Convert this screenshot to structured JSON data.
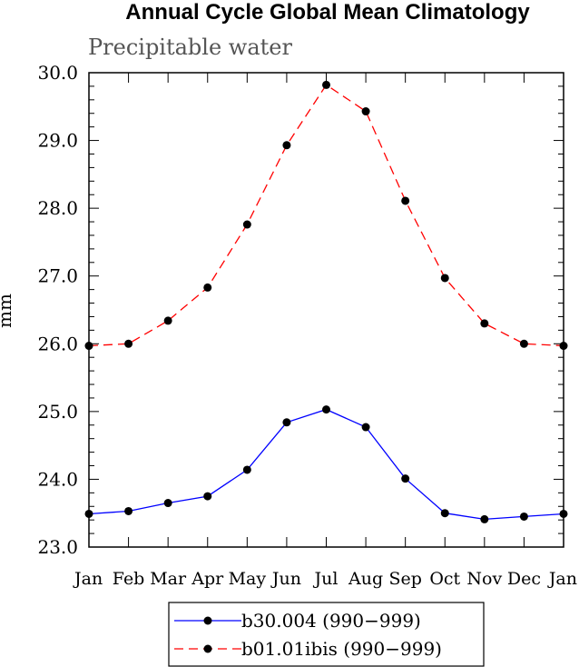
{
  "chart_data": {
    "type": "line",
    "title": "Annual Cycle Global Mean Climatology",
    "subtitle": "Precipitable water",
    "xlabel": "",
    "ylabel": "mm",
    "ylim": [
      23.0,
      30.0
    ],
    "yticks": [
      "23.0",
      "24.0",
      "25.0",
      "26.0",
      "27.0",
      "28.0",
      "29.0",
      "30.0"
    ],
    "categories": [
      "Jan",
      "Feb",
      "Mar",
      "Apr",
      "May",
      "Jun",
      "Jul",
      "Aug",
      "Sep",
      "Oct",
      "Nov",
      "Dec",
      "Jan"
    ],
    "series": [
      {
        "name": "b30.004 (990−999)",
        "color": "#0000ff",
        "dash": "solid",
        "values": [
          23.49,
          23.53,
          23.65,
          23.75,
          24.14,
          24.84,
          25.03,
          24.77,
          24.01,
          23.5,
          23.41,
          23.45,
          23.49
        ]
      },
      {
        "name": "b01.01ibis (990−999)",
        "color": "#ff0000",
        "dash": "dashed",
        "values": [
          25.97,
          26.0,
          26.34,
          26.83,
          27.76,
          28.93,
          29.82,
          29.43,
          28.11,
          26.97,
          26.3,
          26.0,
          25.97
        ]
      }
    ],
    "grid": false,
    "legend": "bottom"
  }
}
